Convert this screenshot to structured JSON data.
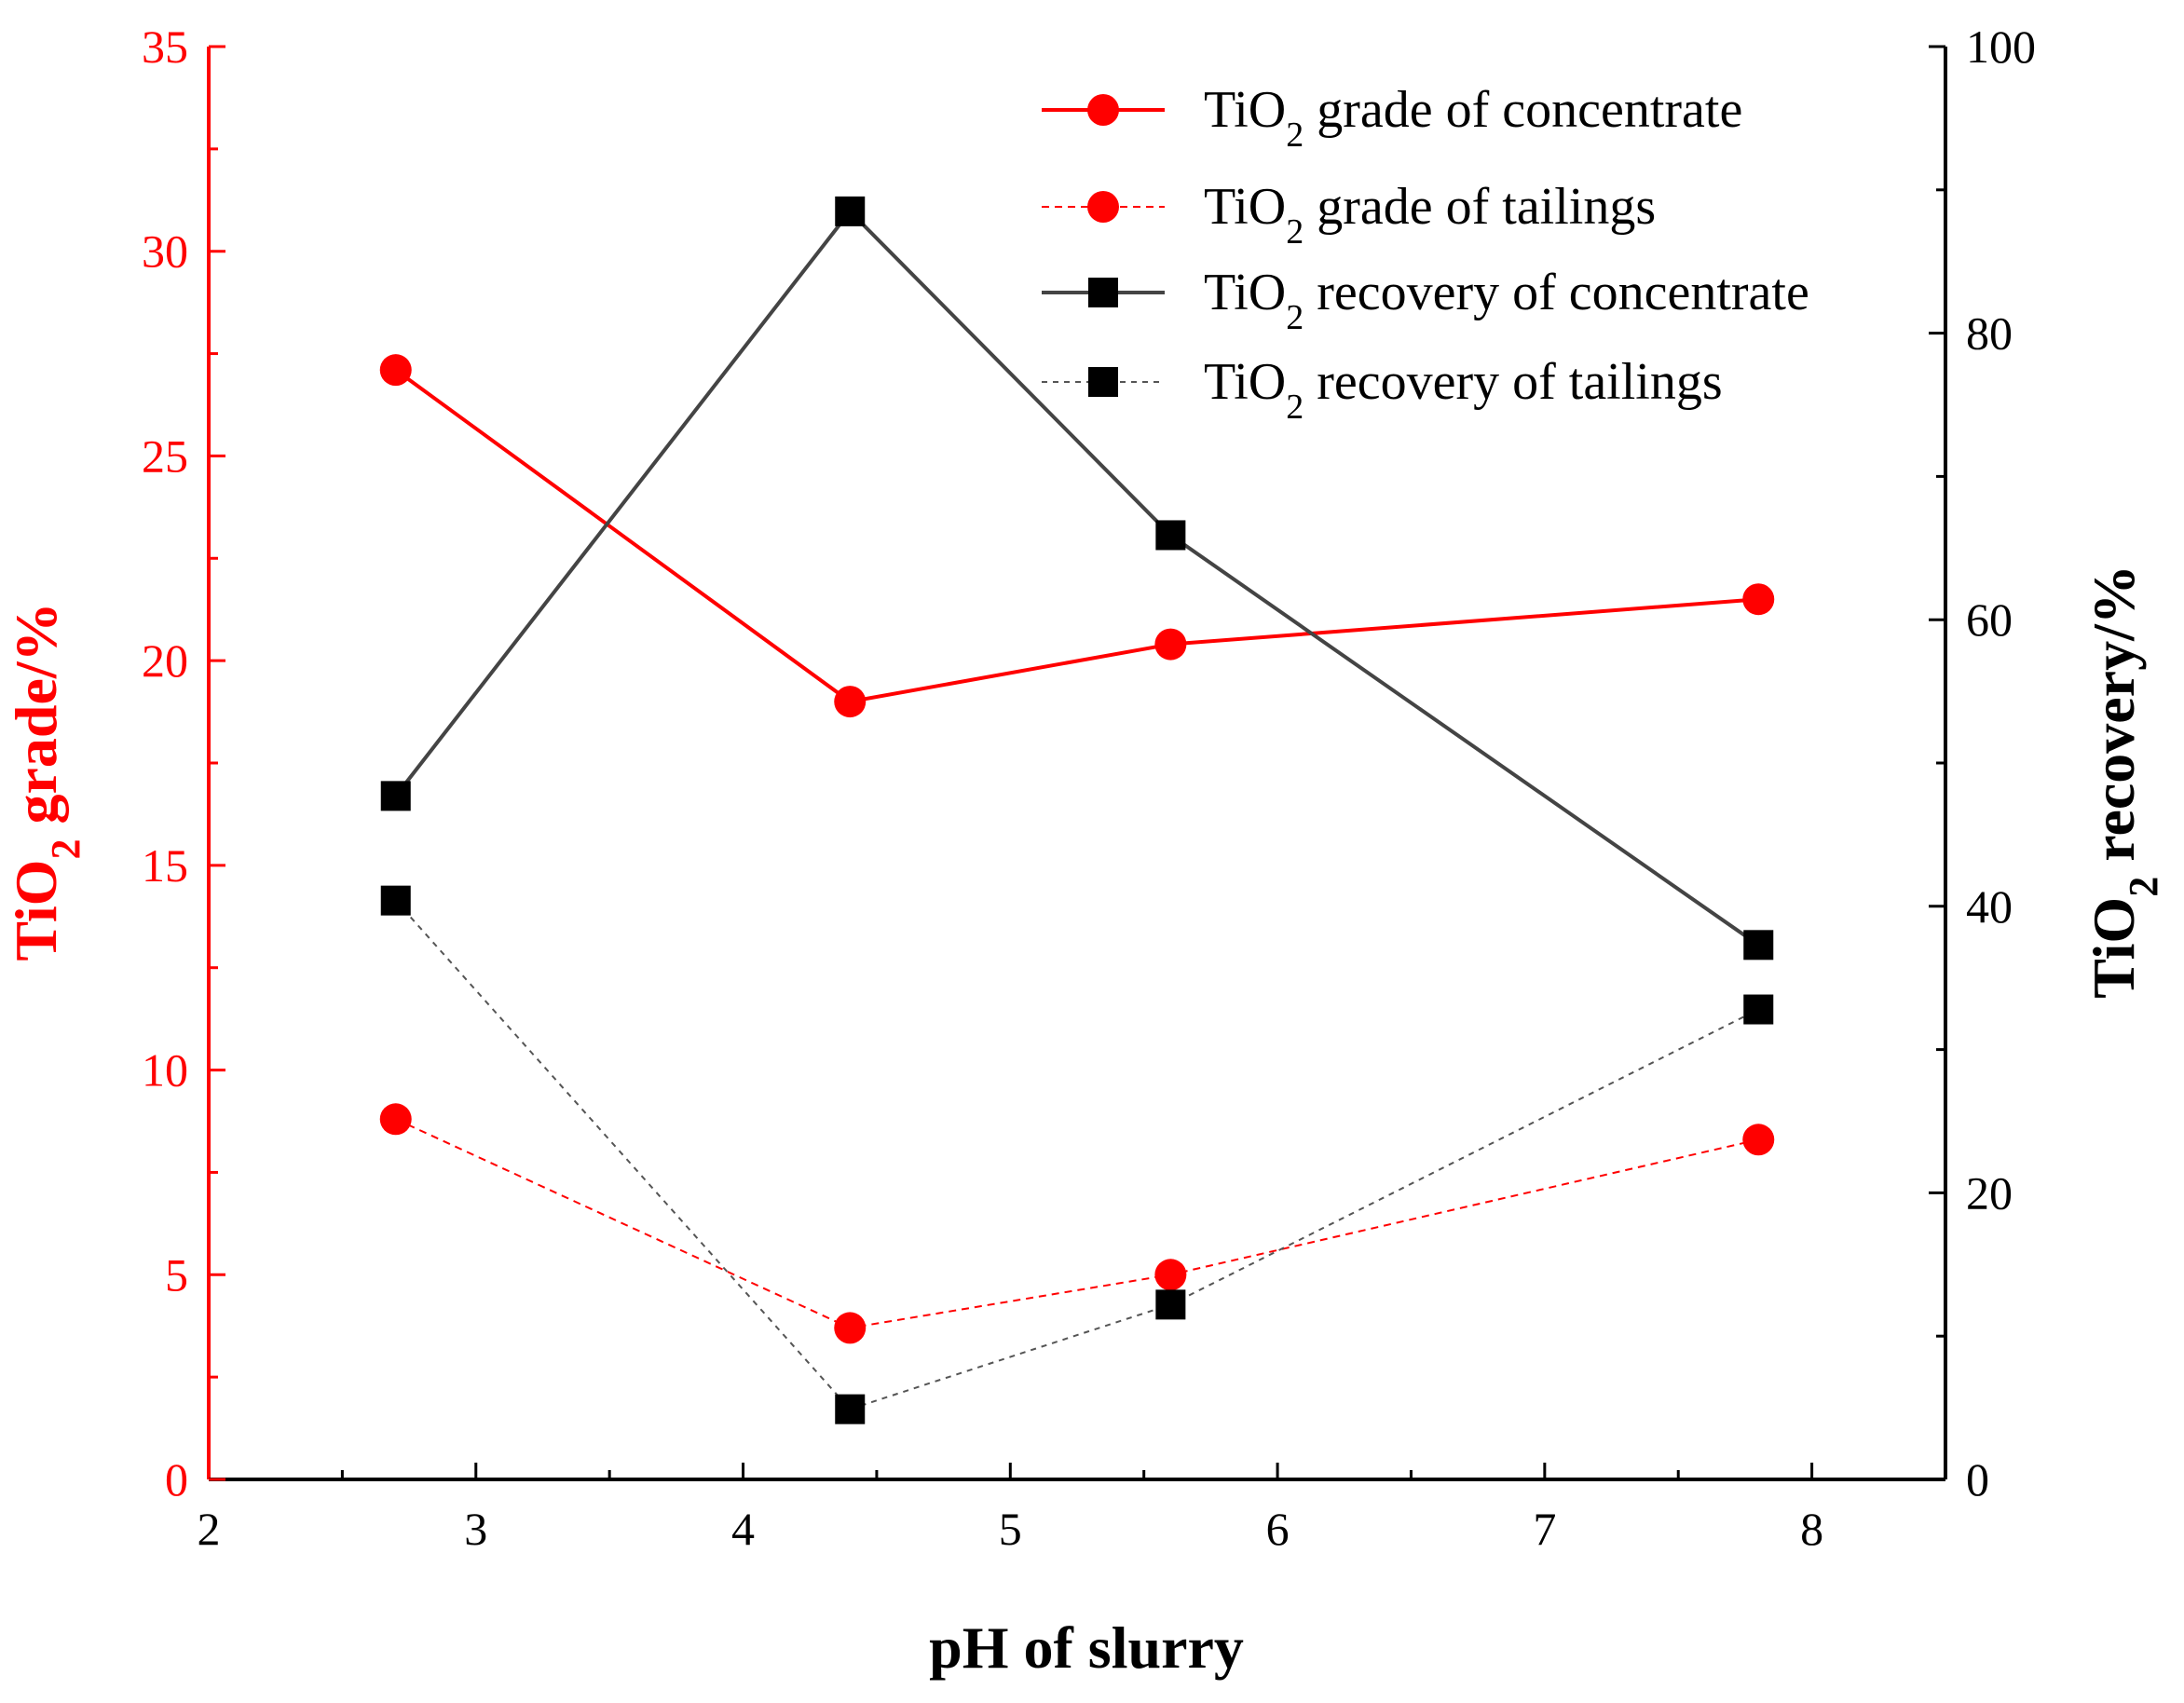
{
  "chart_data": {
    "type": "line",
    "xlabel": "pH of slurry",
    "ylabel_left": {
      "prefix": "TiO",
      "sub": "2",
      "suffix": " grade/%"
    },
    "ylabel_right": {
      "prefix": "TiO",
      "sub": "2",
      "suffix": " recovery/%"
    },
    "xlim": [
      2,
      8.5
    ],
    "ylim_left": [
      0,
      35
    ],
    "ylim_right": [
      0,
      100
    ],
    "x_ticks": [
      2,
      3,
      4,
      5,
      6,
      7,
      8
    ],
    "y_left_ticks": [
      0,
      5,
      10,
      15,
      20,
      25,
      30,
      35
    ],
    "y_right_ticks": [
      0,
      20,
      40,
      60,
      80,
      100
    ],
    "legend_position": "top-right",
    "colors": {
      "grade": "#ff0000",
      "recovery_concentrate": "#444444",
      "recovery_tailings": "#555555",
      "marker_black": "#000000"
    },
    "x": [
      2.7,
      4.4,
      5.6,
      7.8
    ],
    "series": [
      {
        "id": "grade-concentrate",
        "name": {
          "prefix": "TiO",
          "sub": "2",
          "suffix": " grade of concentrate"
        },
        "axis": "left",
        "marker": "circle",
        "line": "solid",
        "values": [
          27.1,
          19.0,
          20.4,
          21.5
        ]
      },
      {
        "id": "grade-tailings",
        "name": {
          "prefix": "TiO",
          "sub": "2",
          "suffix": " grade of tailings"
        },
        "axis": "left",
        "marker": "circle",
        "line": "dashed",
        "values": [
          8.8,
          3.7,
          5.0,
          8.3
        ]
      },
      {
        "id": "recovery-concentrate",
        "name": {
          "prefix": "TiO",
          "sub": "2",
          "suffix": " recovery of concentrate"
        },
        "axis": "right",
        "marker": "square",
        "line": "solid",
        "values": [
          47.7,
          88.5,
          65.9,
          37.3
        ]
      },
      {
        "id": "recovery-tailings",
        "name": {
          "prefix": "TiO",
          "sub": "2",
          "suffix": " recovery of tailings"
        },
        "axis": "right",
        "marker": "square",
        "line": "dashed",
        "values": [
          40.4,
          4.9,
          12.2,
          32.8
        ]
      }
    ]
  }
}
